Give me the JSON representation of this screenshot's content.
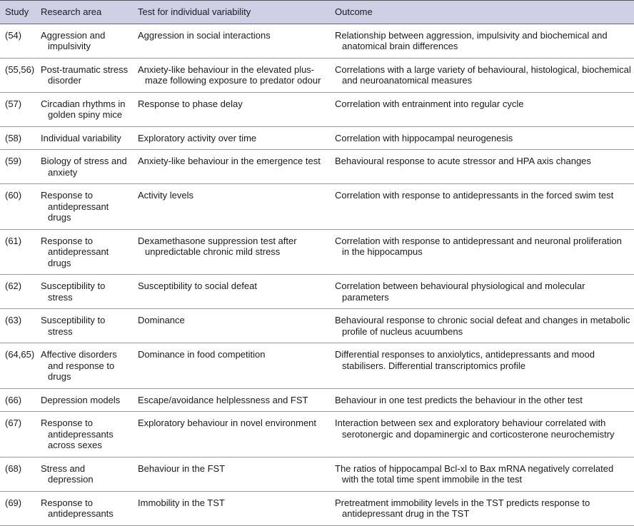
{
  "header": {
    "columns": [
      "Study",
      "Research area",
      "Test for individual variability",
      "Outcome"
    ]
  },
  "table": {
    "rows": [
      [
        "(54)",
        "Aggression and impulsivity",
        "Aggression in social interactions",
        "Relationship between aggression, impulsivity and biochemical and anatomical brain differences"
      ],
      [
        "(55,56)",
        "Post-traumatic stress disorder",
        "Anxiety-like behaviour in the elevated plus-maze following exposure to predator odour",
        "Correlations with a large variety of behavioural, histological, biochemical and neuroanatomical measures"
      ],
      [
        "(57)",
        "Circadian rhythms in golden spiny mice",
        "Response to phase delay",
        "Correlation with entrainment into regular cycle"
      ],
      [
        "(58)",
        "Individual variability",
        "Exploratory activity over time",
        "Correlation with hippocampal neurogenesis"
      ],
      [
        "(59)",
        "Biology of stress and anxiety",
        "Anxiety-like behaviour in the emergence test",
        "Behavioural response to acute stressor and HPA axis changes"
      ],
      [
        "(60)",
        "Response to antidepressant drugs",
        "Activity levels",
        "Correlation with response to antidepressants in the forced swim test"
      ],
      [
        "(61)",
        "Response to antidepressant drugs",
        "Dexamethasone suppression test after unpredictable chronic mild stress",
        "Correlation with response to antidepressant and neuronal proliferation in the hippocampus"
      ],
      [
        "(62)",
        "Susceptibility to stress",
        "Susceptibility to social defeat",
        "Correlation between behavioural physiological and molecular parameters"
      ],
      [
        "(63)",
        "Susceptibility to stress",
        "Dominance",
        "Behavioural response to chronic social defeat and changes in metabolic profile of nucleus acuumbens"
      ],
      [
        "(64,65)",
        "Affective disorders and response to drugs",
        "Dominance in food competition",
        "Differential responses to anxiolytics, antidepressants and mood stabilisers. Differential transcriptomics profile"
      ],
      [
        "(66)",
        "Depression models",
        "Escape/avoidance helplessness and FST",
        "Behaviour in one test predicts the behaviour in the other test"
      ],
      [
        "(67)",
        "Response to antidepressants across sexes",
        "Exploratory behaviour in novel environment",
        "Interaction between sex and exploratory behaviour correlated with serotonergic and dopaminergic and corticosterone neurochemistry"
      ],
      [
        "(68)",
        "Stress and depression",
        "Behaviour in the FST",
        "The ratios of hippocampal Bcl-xl to Bax mRNA negatively correlated with the total time spent immobile in the test"
      ],
      [
        "(69)",
        "Response to antidepressants",
        "Immobility in the TST",
        "Pretreatment immobility levels in the TST predicts response to antidepressant drug in the TST"
      ]
    ]
  }
}
